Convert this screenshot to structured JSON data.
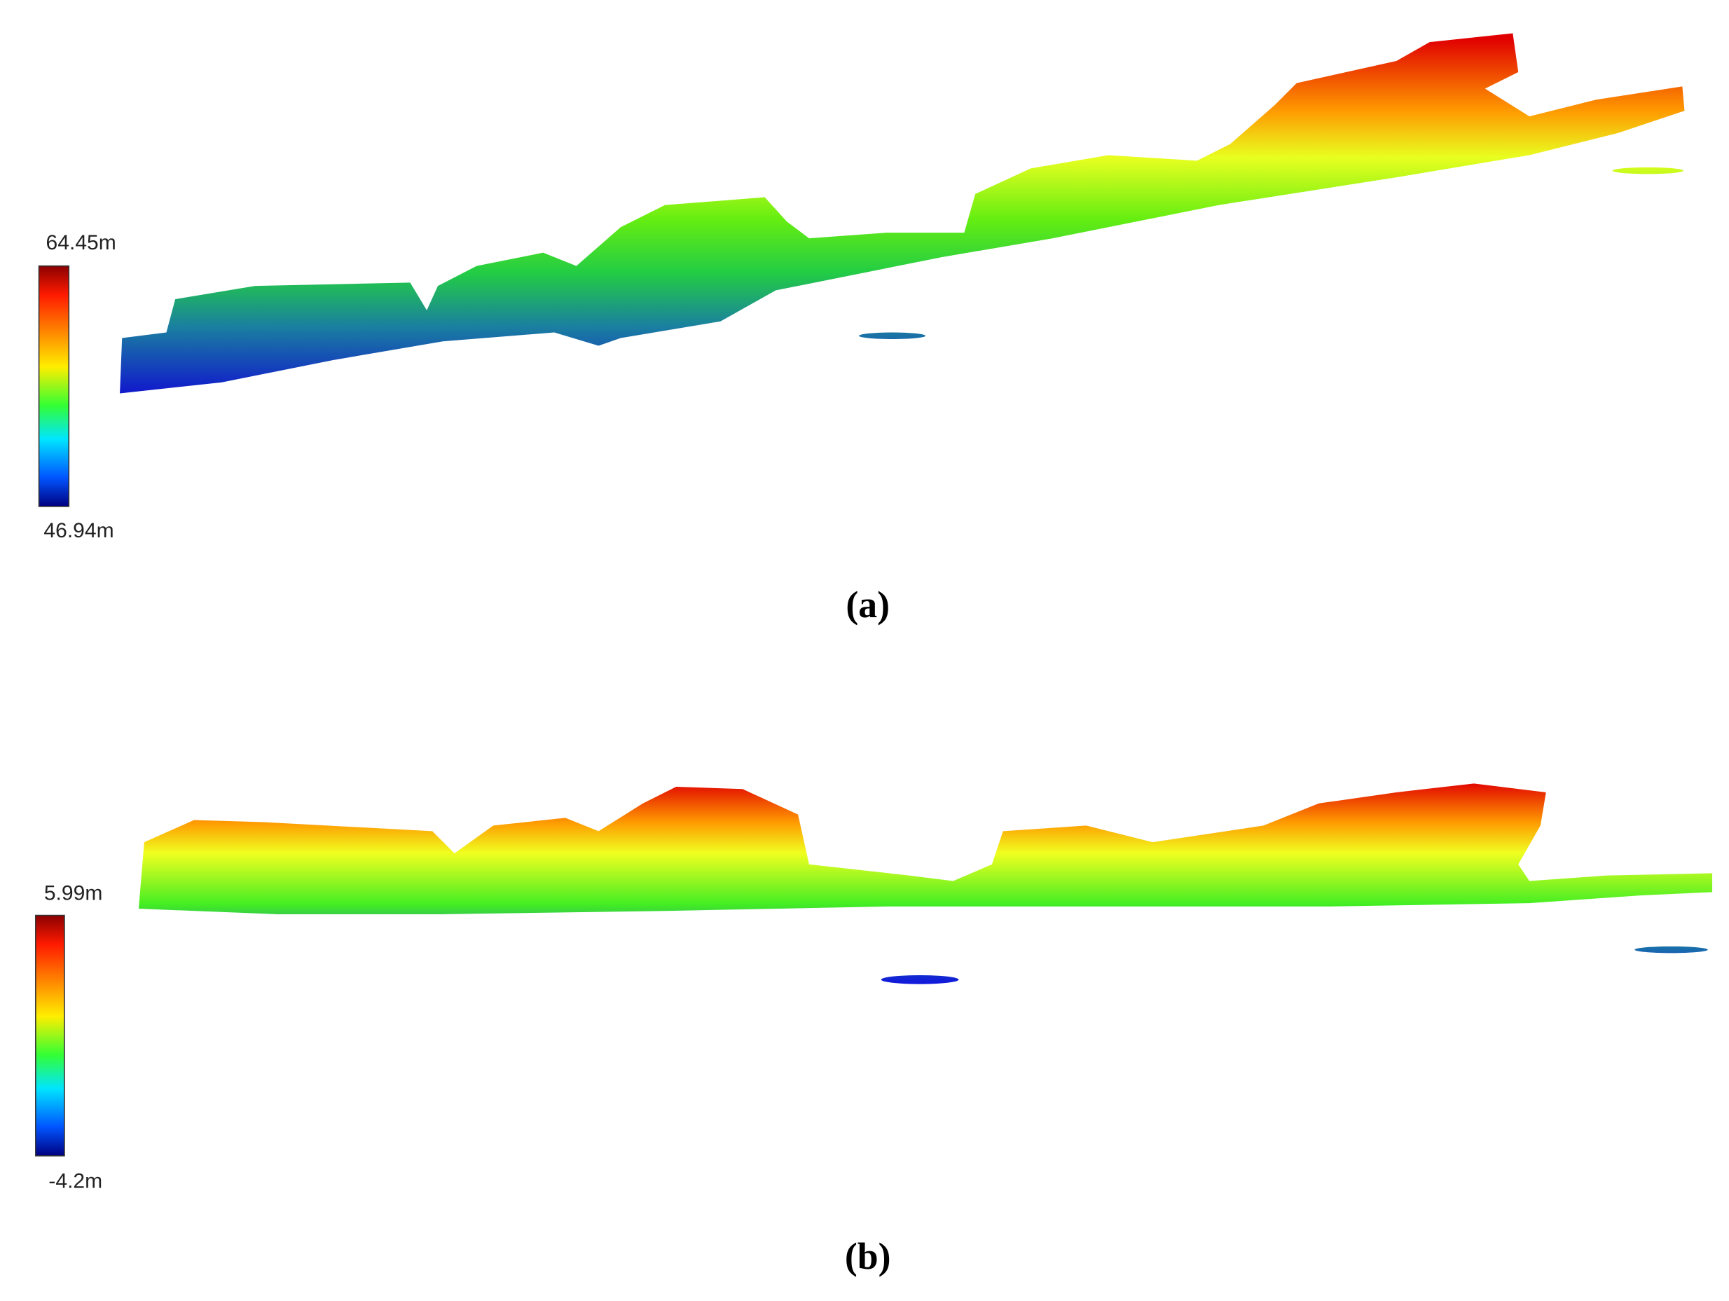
{
  "panels": [
    {
      "label": "(a)",
      "colorbar": {
        "max_label": "64.45m",
        "min_label": "46.94m"
      }
    },
    {
      "label": "(b)",
      "colorbar": {
        "max_label": "5.99m",
        "min_label": "-4.2m"
      }
    }
  ]
}
